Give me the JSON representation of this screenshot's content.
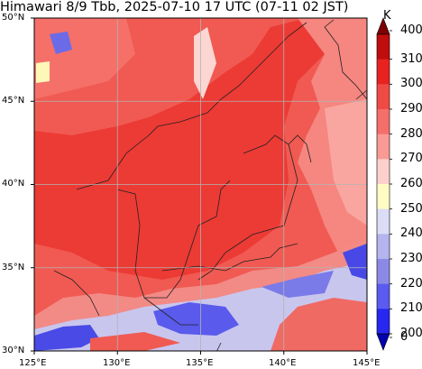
{
  "title": "Himawari 8/9 Tbb, 2025-07-10 17 UTC (07-11 02 JST)",
  "axes": {
    "lat_labels": [
      "50°N",
      "45°N",
      "40°N",
      "35°N",
      "30°N"
    ],
    "lon_labels": [
      "125°E",
      "130°E",
      "135°E",
      "140°E",
      "145°E"
    ],
    "lon_range": [
      125,
      145
    ],
    "lat_range": [
      30,
      50
    ],
    "grid": true
  },
  "colorbar": {
    "unit": "K",
    "ticks": [
      "400",
      "310",
      "300",
      "290",
      "280",
      "270",
      "260",
      "250",
      "240",
      "230",
      "220",
      "210",
      "200",
      "0"
    ],
    "colors": [
      "#7f0000",
      "#c00d0d",
      "#e8221f",
      "#f04a45",
      "#f56f6a",
      "#fa9a95",
      "#fdd0cc",
      "#fefcc3",
      "#dcdcf6",
      "#b4b4ee",
      "#8a8ae6",
      "#5b5bf0",
      "#2727ef",
      "#0202b0"
    ],
    "extend": "both"
  }
}
